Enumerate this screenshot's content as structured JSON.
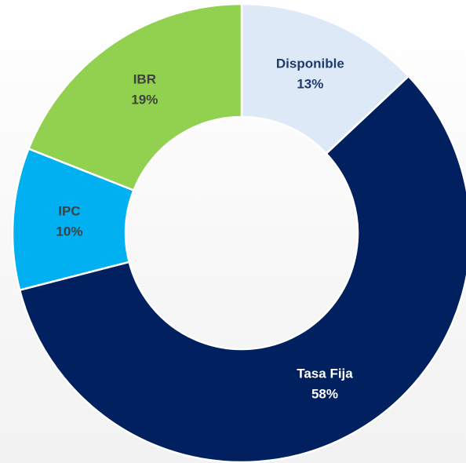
{
  "chart_data": {
    "type": "donut",
    "categories": [
      "Disponible",
      "Tasa Fija",
      "IPC",
      "IBR"
    ],
    "values": [
      13,
      58,
      10,
      19
    ],
    "value_labels": [
      "13%",
      "58%",
      "10%",
      "19%"
    ],
    "colors": [
      "#dde9f6",
      "#002060",
      "#00b0f0",
      "#92d050"
    ],
    "label_colors": [
      "#1f3a6e",
      "#ffffff",
      "#404040",
      "#404040"
    ]
  }
}
